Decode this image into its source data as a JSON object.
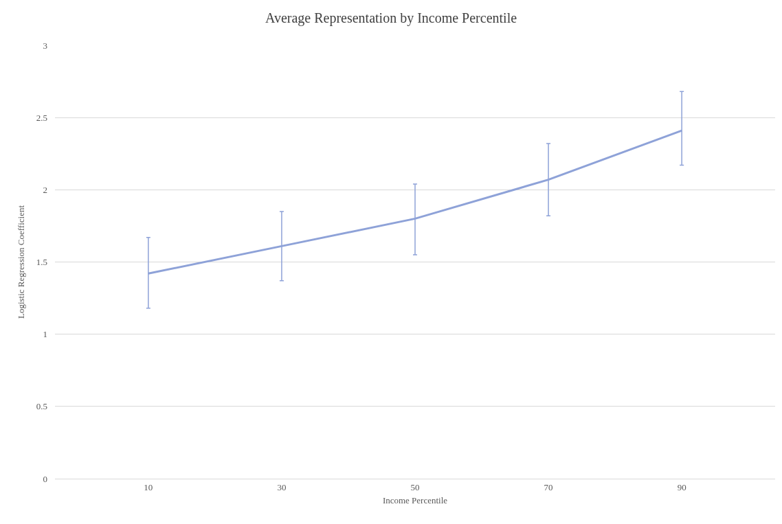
{
  "chart_data": {
    "type": "line",
    "title": "Average Representation by Income Percentile",
    "xlabel": "Income Percentile",
    "ylabel": "Logistic Regression Coefficient",
    "categories": [
      "10",
      "30",
      "50",
      "70",
      "90"
    ],
    "series": [
      {
        "color": "#8ea2d8",
        "values": [
          1.42,
          1.61,
          1.8,
          2.07,
          2.41
        ],
        "errors": [
          [
            1.18,
            1.67
          ],
          [
            1.37,
            1.85
          ],
          [
            1.55,
            2.04
          ],
          [
            1.82,
            2.32
          ],
          [
            2.17,
            2.68
          ]
        ]
      }
    ],
    "ylim": [
      0,
      3
    ],
    "yticks": [
      0,
      0.5,
      1,
      1.5,
      2,
      2.5,
      3
    ],
    "grid": "y",
    "marker": "none",
    "line_style": "solid"
  }
}
